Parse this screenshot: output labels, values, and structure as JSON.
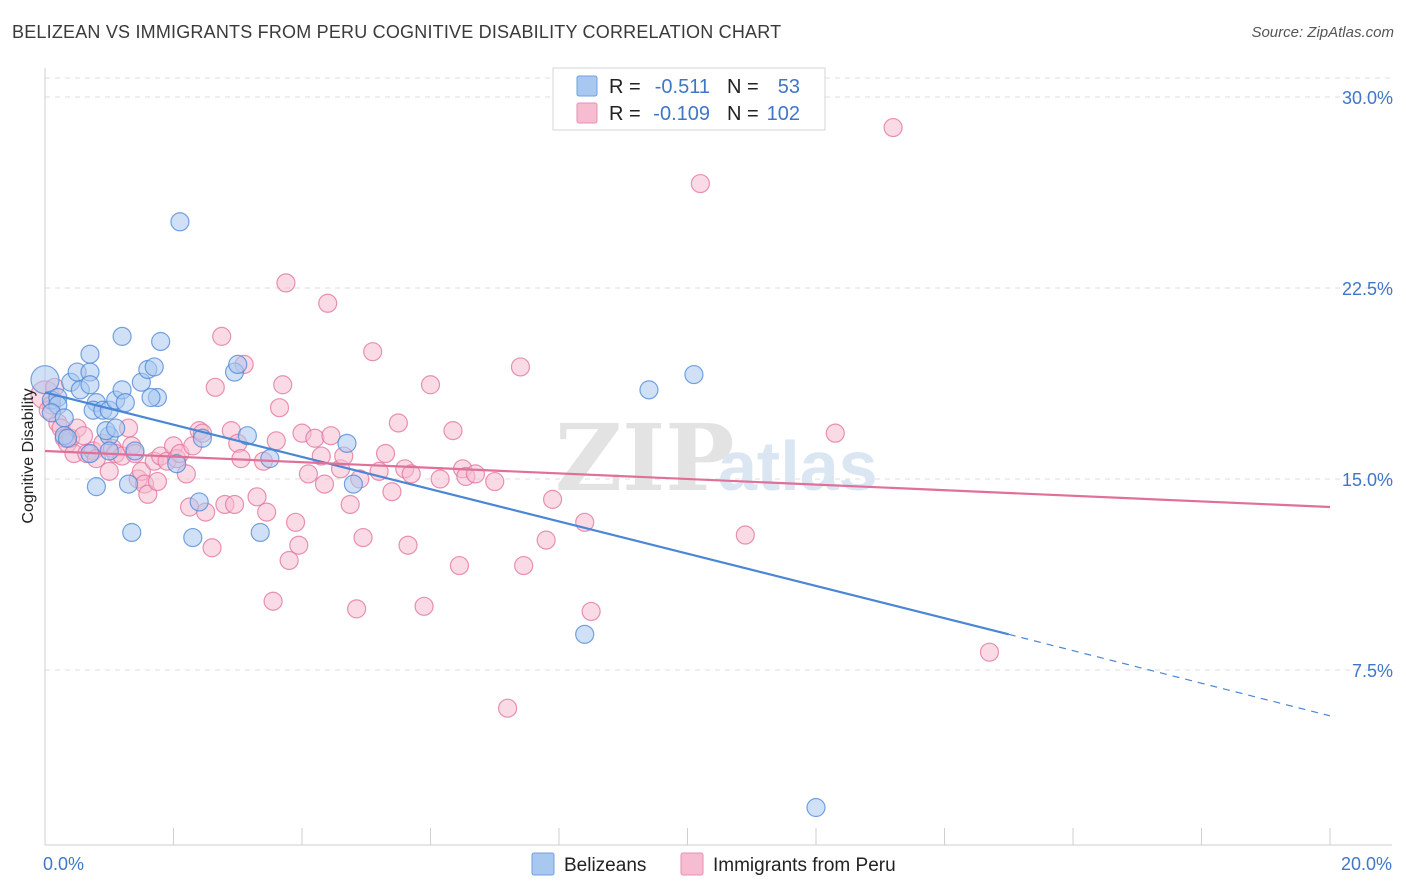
{
  "title": "BELIZEAN VS IMMIGRANTS FROM PERU COGNITIVE DISABILITY CORRELATION CHART",
  "source": "Source: ZipAtlas.com",
  "watermark": {
    "zip": "ZIP",
    "atlas": "atlas"
  },
  "legend_top": {
    "rows": [
      {
        "r_label": "R =",
        "r_value": "-0.511",
        "n_label": "N =",
        "n_value": "53",
        "color": "#a9c8f0",
        "stroke": "#6f9fe0"
      },
      {
        "r_label": "R =",
        "r_value": "-0.109",
        "n_label": "N =",
        "n_value": "102",
        "color": "#f6bcd0",
        "stroke": "#ea8fb0"
      }
    ]
  },
  "legend_bottom": [
    {
      "label": "Belizeans",
      "color": "#a9c8f0",
      "stroke": "#6f9fe0"
    },
    {
      "label": "Immigrants from Peru",
      "color": "#f6bcd0",
      "stroke": "#ea8fb0"
    }
  ],
  "chart_data": {
    "type": "scatter",
    "title": "BELIZEAN VS IMMIGRANTS FROM PERU COGNITIVE DISABILITY CORRELATION CHART",
    "xlabel": "",
    "ylabel": "Cognitive Disability",
    "xlim": [
      0,
      20
    ],
    "ylim": [
      0,
      31
    ],
    "x_tick_labels": [
      "0.0%",
      "20.0%"
    ],
    "y_ticks": [
      7.5,
      15.0,
      22.5,
      30.0
    ],
    "y_tick_labels": [
      "7.5%",
      "15.0%",
      "22.5%",
      "30.0%"
    ],
    "grid": true,
    "legend_position": "top-center",
    "colors": {
      "belizeans": "#4a86d6",
      "peru": "#e07099"
    },
    "series": [
      {
        "name": "Belizeans",
        "color": "#4a86d6",
        "fill": "#a9c8f0",
        "r": -0.511,
        "n": 53,
        "trend": {
          "x0": 0.0,
          "y0": 18.4,
          "x1": 15.0,
          "y1": 8.9,
          "dash_to_x": 20.0,
          "dash_to_y": 5.7
        },
        "points": [
          [
            0.0,
            18.9
          ],
          [
            0.1,
            18.1
          ],
          [
            0.2,
            18.2
          ],
          [
            0.2,
            17.9
          ],
          [
            0.1,
            17.6
          ],
          [
            0.3,
            17.4
          ],
          [
            0.3,
            16.7
          ],
          [
            0.35,
            16.6
          ],
          [
            0.4,
            18.8
          ],
          [
            0.5,
            19.2
          ],
          [
            0.55,
            18.5
          ],
          [
            0.7,
            19.2
          ],
          [
            0.7,
            18.7
          ],
          [
            0.8,
            18.0
          ],
          [
            0.75,
            17.7
          ],
          [
            0.9,
            17.7
          ],
          [
            1.0,
            17.7
          ],
          [
            1.0,
            16.7
          ],
          [
            0.95,
            16.9
          ],
          [
            1.1,
            18.1
          ],
          [
            1.2,
            18.5
          ],
          [
            1.25,
            18.0
          ],
          [
            0.7,
            16.0
          ],
          [
            0.8,
            14.7
          ],
          [
            1.1,
            17.0
          ],
          [
            1.0,
            16.1
          ],
          [
            1.4,
            16.1
          ],
          [
            1.3,
            14.8
          ],
          [
            1.5,
            18.8
          ],
          [
            1.6,
            19.3
          ],
          [
            1.7,
            19.4
          ],
          [
            1.75,
            18.2
          ],
          [
            1.8,
            20.4
          ],
          [
            1.2,
            20.6
          ],
          [
            0.7,
            19.9
          ],
          [
            1.35,
            12.9
          ],
          [
            1.65,
            18.2
          ],
          [
            2.1,
            25.1
          ],
          [
            2.05,
            15.6
          ],
          [
            2.3,
            12.7
          ],
          [
            2.4,
            14.1
          ],
          [
            2.45,
            16.6
          ],
          [
            2.95,
            19.2
          ],
          [
            3.0,
            19.5
          ],
          [
            3.15,
            16.7
          ],
          [
            3.35,
            12.9
          ],
          [
            3.5,
            15.8
          ],
          [
            4.7,
            16.4
          ],
          [
            4.8,
            14.8
          ],
          [
            8.4,
            8.9
          ],
          [
            9.4,
            18.5
          ],
          [
            10.1,
            19.1
          ],
          [
            12.0,
            2.1
          ]
        ]
      },
      {
        "name": "Immigrants from Peru",
        "color": "#e07099",
        "fill": "#f6bcd0",
        "r": -0.109,
        "n": 102,
        "trend": {
          "x0": 0.0,
          "y0": 16.1,
          "x1": 20.0,
          "y1": 13.9
        },
        "points": [
          [
            0.0,
            18.3
          ],
          [
            0.1,
            17.9
          ],
          [
            0.2,
            17.2
          ],
          [
            0.25,
            17.0
          ],
          [
            0.3,
            16.6
          ],
          [
            0.35,
            16.4
          ],
          [
            0.4,
            16.6
          ],
          [
            0.45,
            16.0
          ],
          [
            0.5,
            17.0
          ],
          [
            0.6,
            16.7
          ],
          [
            0.65,
            16.0
          ],
          [
            0.75,
            16.1
          ],
          [
            0.8,
            15.8
          ],
          [
            0.9,
            16.4
          ],
          [
            1.0,
            15.3
          ],
          [
            1.05,
            16.2
          ],
          [
            1.1,
            16.0
          ],
          [
            1.2,
            15.9
          ],
          [
            1.3,
            17.0
          ],
          [
            1.35,
            16.3
          ],
          [
            1.4,
            16.0
          ],
          [
            1.45,
            15.0
          ],
          [
            1.5,
            15.3
          ],
          [
            1.55,
            14.8
          ],
          [
            1.6,
            14.4
          ],
          [
            1.7,
            15.7
          ],
          [
            1.75,
            14.9
          ],
          [
            1.8,
            15.9
          ],
          [
            1.9,
            15.7
          ],
          [
            2.0,
            16.3
          ],
          [
            2.05,
            15.8
          ],
          [
            2.1,
            16.0
          ],
          [
            2.2,
            15.2
          ],
          [
            2.25,
            13.9
          ],
          [
            2.3,
            16.3
          ],
          [
            2.4,
            16.9
          ],
          [
            2.45,
            16.8
          ],
          [
            2.5,
            13.7
          ],
          [
            2.6,
            12.3
          ],
          [
            2.65,
            18.6
          ],
          [
            2.75,
            20.6
          ],
          [
            2.8,
            14.0
          ],
          [
            2.9,
            16.9
          ],
          [
            2.95,
            14.0
          ],
          [
            3.0,
            16.4
          ],
          [
            3.05,
            15.8
          ],
          [
            3.1,
            19.5
          ],
          [
            3.3,
            14.3
          ],
          [
            3.4,
            15.7
          ],
          [
            3.45,
            13.7
          ],
          [
            3.55,
            10.2
          ],
          [
            3.6,
            16.5
          ],
          [
            3.65,
            17.8
          ],
          [
            3.7,
            18.7
          ],
          [
            3.75,
            22.7
          ],
          [
            3.8,
            11.8
          ],
          [
            3.9,
            13.3
          ],
          [
            3.95,
            12.4
          ],
          [
            4.0,
            16.8
          ],
          [
            4.1,
            15.2
          ],
          [
            4.2,
            16.6
          ],
          [
            4.3,
            15.9
          ],
          [
            4.35,
            14.8
          ],
          [
            4.4,
            21.9
          ],
          [
            4.45,
            16.7
          ],
          [
            4.6,
            15.4
          ],
          [
            4.65,
            15.9
          ],
          [
            4.75,
            14.0
          ],
          [
            4.85,
            9.9
          ],
          [
            4.9,
            15.0
          ],
          [
            4.95,
            12.7
          ],
          [
            5.1,
            20.0
          ],
          [
            5.2,
            15.3
          ],
          [
            5.3,
            16.0
          ],
          [
            5.4,
            14.5
          ],
          [
            5.5,
            17.2
          ],
          [
            5.6,
            15.4
          ],
          [
            5.65,
            12.4
          ],
          [
            5.7,
            15.2
          ],
          [
            5.9,
            10.0
          ],
          [
            6.0,
            18.7
          ],
          [
            6.15,
            15.0
          ],
          [
            6.35,
            16.9
          ],
          [
            6.45,
            11.6
          ],
          [
            6.5,
            15.4
          ],
          [
            6.55,
            15.1
          ],
          [
            6.7,
            15.2
          ],
          [
            7.0,
            14.9
          ],
          [
            7.2,
            6.0
          ],
          [
            7.4,
            19.4
          ],
          [
            7.45,
            11.6
          ],
          [
            7.8,
            12.6
          ],
          [
            7.9,
            14.2
          ],
          [
            8.4,
            13.3
          ],
          [
            8.5,
            9.8
          ],
          [
            10.2,
            26.6
          ],
          [
            10.9,
            12.8
          ],
          [
            12.3,
            16.8
          ],
          [
            14.7,
            8.2
          ],
          [
            13.2,
            28.8
          ],
          [
            0.15,
            18.6
          ],
          [
            0.05,
            17.7
          ]
        ]
      }
    ]
  }
}
